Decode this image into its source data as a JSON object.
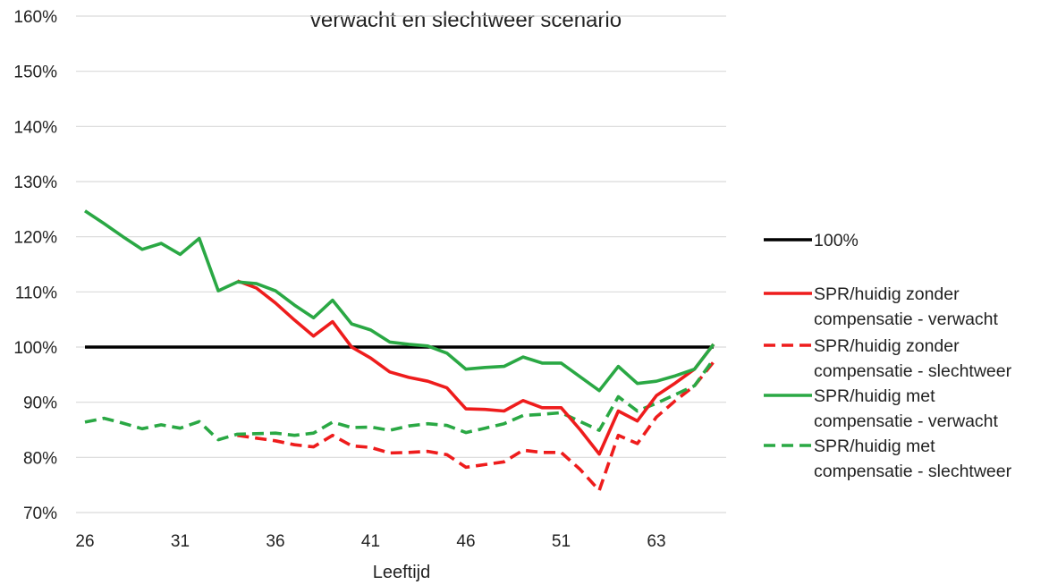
{
  "chart_data": {
    "type": "line",
    "title": "verwacht en slechtweer scenario",
    "xlabel": "Leeftijd",
    "ylabel": "",
    "ylim": [
      70,
      160
    ],
    "y_ticks": [
      "70%",
      "80%",
      "90%",
      "100%",
      "110%",
      "120%",
      "130%",
      "140%",
      "150%",
      "160%"
    ],
    "x_tick_labels": [
      {
        "label": "26",
        "index": 0
      },
      {
        "label": "31",
        "index": 5
      },
      {
        "label": "36",
        "index": 10
      },
      {
        "label": "41",
        "index": 15
      },
      {
        "label": "46",
        "index": 20
      },
      {
        "label": "51",
        "index": 25
      },
      {
        "label": "63",
        "index": 30
      }
    ],
    "grid": true,
    "legend_position": "right",
    "series": [
      {
        "name": "100%",
        "color": "#000000",
        "dash": false,
        "values": [
          100,
          100,
          100,
          100,
          100,
          100,
          100,
          100,
          100,
          100,
          100,
          100,
          100,
          100,
          100,
          100,
          100,
          100,
          100,
          100,
          100,
          100,
          100,
          100,
          100,
          100,
          100,
          100,
          100,
          100,
          100,
          100,
          100,
          100
        ]
      },
      {
        "name": "SPR/huidig zonder compensatie - verwacht",
        "color": "#ee1c1c",
        "dash": false,
        "values": [
          null,
          null,
          null,
          null,
          null,
          null,
          null,
          null,
          112,
          110.7,
          108,
          104.9,
          102,
          104.6,
          100,
          98,
          95.5,
          94.5,
          93.8,
          92.6,
          88.8,
          88.7,
          88.4,
          90.3,
          89,
          89,
          85,
          80.6,
          88.4,
          86.6,
          91.2,
          93.5,
          96,
          100.5
        ]
      },
      {
        "name": "SPR/huidig zonder compensatie - slechtweer",
        "color": "#ee1c1c",
        "dash": true,
        "values": [
          null,
          null,
          null,
          null,
          null,
          null,
          null,
          null,
          84,
          83.5,
          83,
          82.3,
          81.9,
          84,
          82.1,
          81.8,
          80.8,
          80.9,
          81.1,
          80.5,
          78.2,
          78.7,
          79.2,
          81.3,
          80.9,
          80.9,
          77.8,
          74,
          84,
          82.5,
          87.3,
          90.3,
          93,
          97.3
        ]
      },
      {
        "name": "SPR/huidig met compensatie - verwacht",
        "color": "#2aa844",
        "dash": false,
        "values": [
          124.7,
          122.4,
          120,
          117.7,
          118.8,
          116.8,
          119.7,
          110.2,
          111.8,
          111.5,
          110.2,
          107.6,
          105.3,
          108.5,
          104.2,
          103.1,
          100.9,
          100.5,
          100.2,
          98.9,
          96,
          96.3,
          96.5,
          98.2,
          97.1,
          97.1,
          94.6,
          92.1,
          96.5,
          93.4,
          93.8,
          94.8,
          96,
          100.5
        ]
      },
      {
        "name": "SPR/huidig met compensatie - slechtweer",
        "color": "#2aa844",
        "dash": true,
        "values": [
          86.4,
          87.1,
          86.2,
          85.2,
          85.9,
          85.3,
          86.5,
          83.2,
          84.2,
          84.3,
          84.4,
          84,
          84.4,
          86.4,
          85.4,
          85.5,
          84.9,
          85.7,
          86.1,
          85.8,
          84.5,
          85.3,
          86.1,
          87.6,
          87.8,
          88.1,
          86.5,
          84.9,
          91,
          88.4,
          89.8,
          91.4,
          93,
          97.8
        ]
      }
    ]
  },
  "legend": {
    "items": [
      {
        "lines": [
          "100%"
        ],
        "color": "#000000",
        "dash": false
      },
      {
        "lines": [
          "SPR/huidig zonder",
          "compensatie - verwacht"
        ],
        "color": "#ee1c1c",
        "dash": false
      },
      {
        "lines": [
          "SPR/huidig zonder",
          "compensatie - slechtweer"
        ],
        "color": "#ee1c1c",
        "dash": true
      },
      {
        "lines": [
          "SPR/huidig met",
          "compensatie - verwacht"
        ],
        "color": "#2aa844",
        "dash": false
      },
      {
        "lines": [
          "SPR/huidig met",
          "compensatie - slechtweer"
        ],
        "color": "#2aa844",
        "dash": true
      }
    ]
  }
}
